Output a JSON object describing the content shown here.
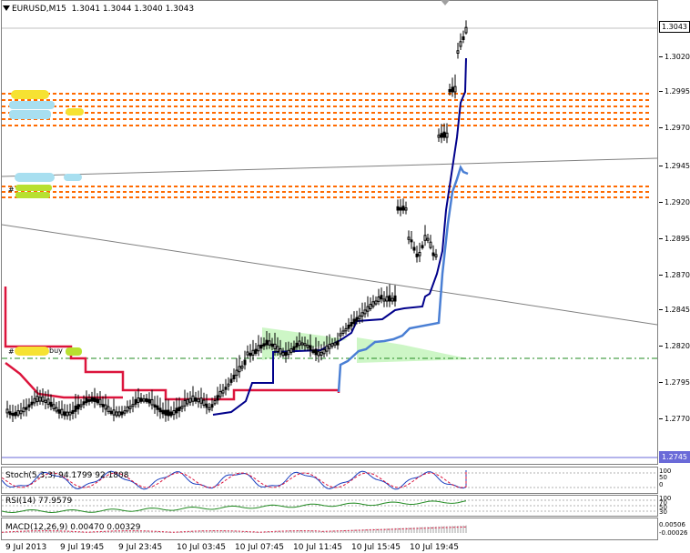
{
  "chart_header": {
    "symbol": "EURUSD,M15",
    "ohlc": "1.3041 1.3044 1.3040 1.3043"
  },
  "price_axis": {
    "ticks": [
      "1.3020",
      "1.2995",
      "1.2970",
      "1.2945",
      "1.2920",
      "1.2895",
      "1.2870",
      "1.2845",
      "1.2820",
      "1.2795",
      "1.2770"
    ],
    "current_price_label": "1.3043",
    "low_line_label": "1.2745"
  },
  "time_axis": {
    "labels": [
      "9 Jul 2013",
      "9 Jul 19:45",
      "9 Jul 23:45",
      "10 Jul 03:45",
      "10 Jul 07:45",
      "10 Jul 11:45",
      "10 Jul 15:45",
      "10 Jul 19:45"
    ]
  },
  "indicators": {
    "stoch": {
      "label": "Stoch(5,3,3) 94.1799 92.1808",
      "scale_top": "100",
      "scale_mid": "50",
      "scale_bottom": "0"
    },
    "rsi": {
      "label": "RSI(14) 77.9579",
      "scale": [
        "100",
        "70",
        "50",
        "30",
        "0"
      ]
    },
    "macd": {
      "label": "MACD(12,26,9) 0.00470 0.00329",
      "scale_top": "0.00506",
      "scale_bottom": "-0.00026"
    }
  },
  "annotations": {
    "buy_label": "buy",
    "hash_mark": "#"
  },
  "colors": {
    "candles": "#000000",
    "blue_stop": "#00008b",
    "light_blue_stop": "#4a7fd4",
    "red_stop": "#dc143c",
    "orange_levels": "#ff6a00",
    "green_dash": "#228b22",
    "zone_fill": "#c8f5c0"
  },
  "chart_data": {
    "type": "candlestick",
    "symbol": "EURUSD,M15",
    "ylim": [
      1.2745,
      1.305
    ],
    "price_levels": [
      1.3043,
      1.2745
    ]
  }
}
